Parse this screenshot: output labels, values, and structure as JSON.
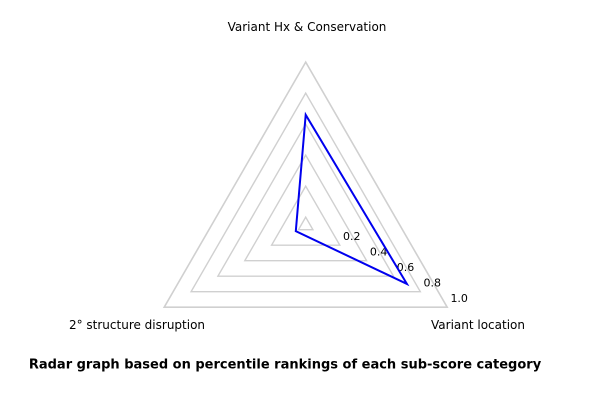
{
  "figure": {
    "caption": "Radar graph based on percentile rankings of each sub-score category"
  },
  "chart_data": {
    "type": "radar",
    "title": "",
    "categories": [
      "Variant Hx & Conservation",
      "2° structure disruption",
      "Variant location"
    ],
    "series": [
      {
        "name": "percentile-rankings",
        "values": [
          0.66,
          0.02,
          0.7
        ]
      }
    ],
    "grid_ring_values": [
      0.0,
      0.2,
      0.4,
      0.6,
      0.8
    ],
    "frame_value": 1.0,
    "ring_ticks": [
      {
        "value": 0.2,
        "label": "0.2"
      },
      {
        "value": 0.4,
        "label": "0.4"
      },
      {
        "value": 0.6,
        "label": "0.6"
      },
      {
        "value": 0.8,
        "label": "0.8"
      },
      {
        "value": 1.0,
        "label": "1.0"
      }
    ],
    "radial_range": [
      -0.054,
      1.0
    ],
    "grid": true,
    "legend": false,
    "line_color": "#0000ee",
    "grid_color": "#d0d0d0",
    "text_color": "#000000"
  }
}
